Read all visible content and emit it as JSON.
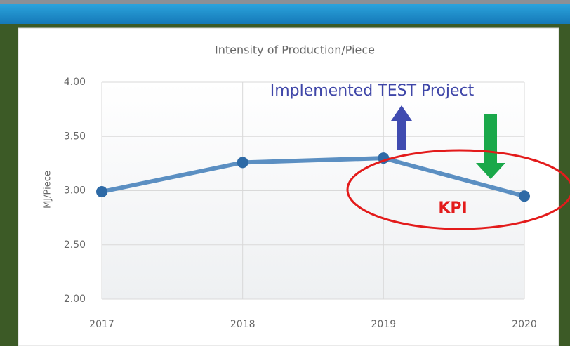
{
  "chart_data": {
    "type": "line",
    "title": "Intensity of Production/Piece",
    "y_label": "MJ/Piece",
    "categories": [
      "2017",
      "2018",
      "2019",
      "2020"
    ],
    "values": [
      2.99,
      3.26,
      3.3,
      2.95
    ],
    "color": "#5b8fc2",
    "marker_color": "#2e6aa6",
    "ylim": [
      2.0,
      4.0
    ],
    "yticks": [
      {
        "value": 2,
        "label": "2.00"
      },
      {
        "value": 2.5,
        "label": "2.50"
      },
      {
        "value": 3,
        "label": "3.00"
      },
      {
        "value": 3.5,
        "label": "3.50"
      },
      {
        "value": 4,
        "label": "4.00"
      }
    ],
    "grid": true,
    "annotations": [
      "Implemented TEST Project",
      "KPI"
    ]
  }
}
